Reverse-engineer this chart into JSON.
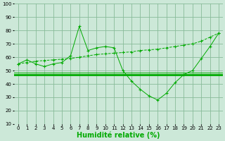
{
  "xlabel": "Humidité relative (%)",
  "bg_color": "#cce8d8",
  "grid_color": "#88bb99",
  "line_color": "#00aa00",
  "xlim": [
    -0.5,
    23.5
  ],
  "ylim": [
    10,
    100
  ],
  "yticks": [
    10,
    20,
    30,
    40,
    50,
    60,
    70,
    80,
    90,
    100
  ],
  "xticks": [
    0,
    1,
    2,
    3,
    4,
    5,
    6,
    7,
    8,
    9,
    10,
    11,
    12,
    13,
    14,
    15,
    16,
    17,
    18,
    19,
    20,
    21,
    22,
    23
  ],
  "series1_x": [
    0,
    1,
    2,
    3,
    4,
    5,
    6,
    7,
    8,
    9,
    10,
    11,
    12,
    13,
    14,
    15,
    16,
    17,
    18,
    19,
    20,
    21,
    22,
    23
  ],
  "series1_y": [
    55,
    58,
    55,
    53,
    55,
    56,
    61,
    83,
    65,
    67,
    68,
    67,
    50,
    42,
    36,
    31,
    28,
    33,
    41,
    47,
    50,
    59,
    68,
    78
  ],
  "series2_x": [
    0,
    1,
    2,
    3,
    4,
    5,
    6,
    7,
    8,
    9,
    10,
    11,
    12,
    13,
    14,
    15,
    16,
    17,
    18,
    19,
    20,
    21,
    22,
    23
  ],
  "series2_y": [
    55,
    56,
    57,
    57.5,
    58,
    58.5,
    59,
    60,
    61,
    62,
    62.5,
    63,
    63.5,
    64,
    65,
    65.5,
    66,
    67,
    68,
    69,
    70,
    72,
    75,
    78
  ],
  "hline1_y": 47,
  "xlabel_fontsize": 7,
  "tick_fontsize": 5
}
